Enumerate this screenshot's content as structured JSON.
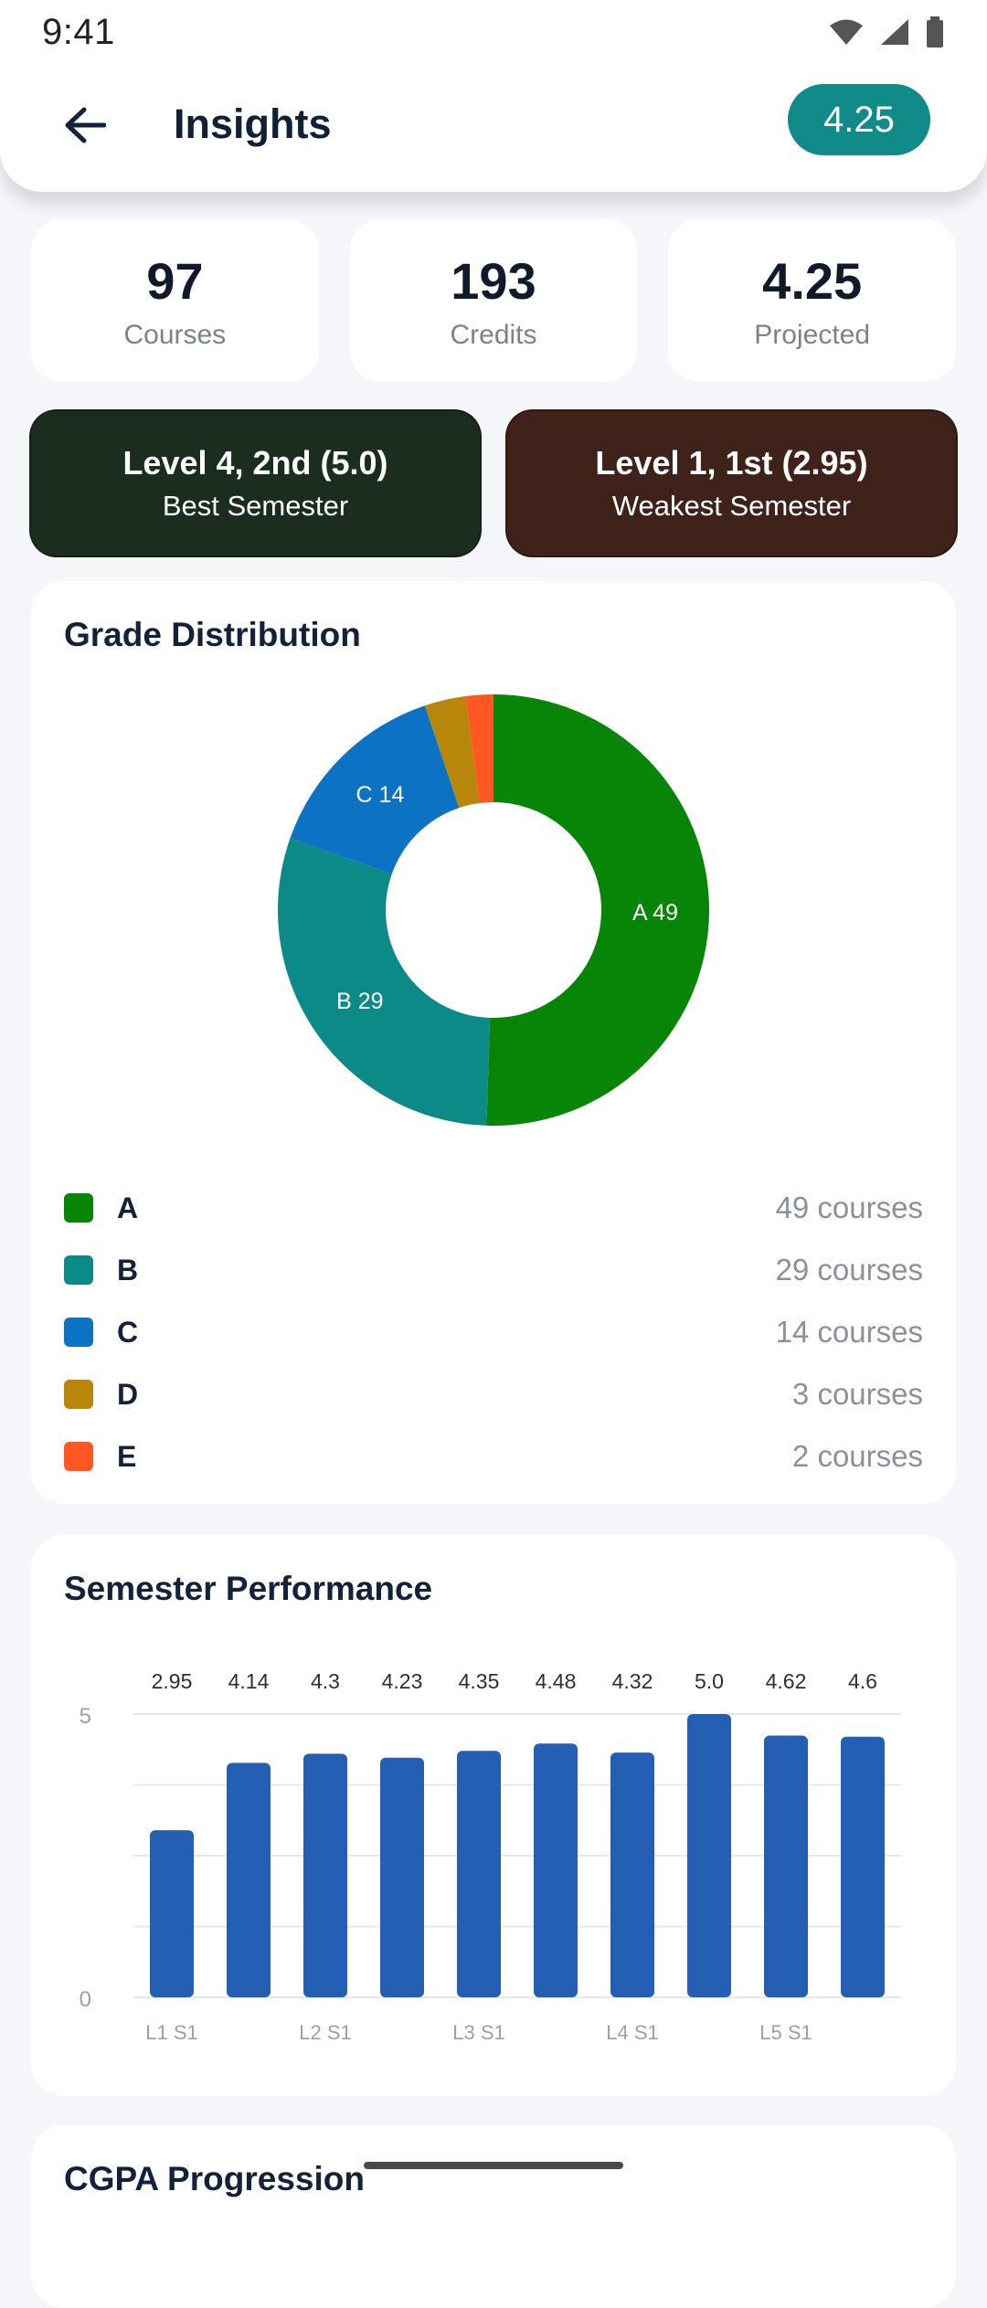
{
  "status_bar": {
    "time": "9:41"
  },
  "app_bar": {
    "title": "Insights",
    "gpa_badge": "4.25"
  },
  "stats": [
    {
      "value": "97",
      "label": "Courses"
    },
    {
      "value": "193",
      "label": "Credits"
    },
    {
      "value": "4.25",
      "label": "Projected"
    }
  ],
  "best_semester": {
    "title": "Level 4, 2nd (5.0)",
    "subtitle": "Best Semester",
    "color": "#1a2d1f"
  },
  "weakest_semester": {
    "title": "Level 1, 1st (2.95)",
    "subtitle": "Weakest Semester",
    "color": "#3f2219"
  },
  "grade_distribution": {
    "title": "Grade Distribution",
    "legend": [
      {
        "grade": "A",
        "text": "49 courses",
        "color": "#078507"
      },
      {
        "grade": "B",
        "text": "29 courses",
        "color": "#0b8a87"
      },
      {
        "grade": "C",
        "text": "14 courses",
        "color": "#0b72c4"
      },
      {
        "grade": "D",
        "text": "3 courses",
        "color": "#b8860b"
      },
      {
        "grade": "E",
        "text": "2 courses",
        "color": "#ff5722"
      }
    ]
  },
  "semester_performance": {
    "title": "Semester Performance"
  },
  "cgpa_progression": {
    "title": "CGPA Progression"
  },
  "chart_data": [
    {
      "type": "pie",
      "title": "Grade Distribution",
      "donut": true,
      "categories": [
        "A",
        "B",
        "C",
        "D",
        "E"
      ],
      "values": [
        49,
        29,
        14,
        3,
        2
      ],
      "slice_labels": [
        "A 49",
        "B 29",
        "C 14",
        "",
        ""
      ],
      "colors": [
        "#078507",
        "#0b8a87",
        "#0b72c4",
        "#b8860b",
        "#ff5722"
      ]
    },
    {
      "type": "bar",
      "title": "Semester Performance",
      "categories": [
        "L1 S1",
        "",
        "L2 S1",
        "",
        "L3 S1",
        "",
        "L4 S1",
        "",
        "L5 S1",
        ""
      ],
      "values": [
        2.95,
        4.14,
        4.3,
        4.23,
        4.35,
        4.48,
        4.32,
        5.0,
        4.62,
        4.6
      ],
      "value_labels": [
        "2.95",
        "4.14",
        "4.3",
        "4.23",
        "4.35",
        "4.48",
        "4.32",
        "5.0",
        "4.62",
        "4.6"
      ],
      "y_ticks": [
        "0",
        "5"
      ],
      "ylim": [
        0,
        5
      ],
      "grid": true,
      "bar_color": "#245fb4"
    }
  ]
}
